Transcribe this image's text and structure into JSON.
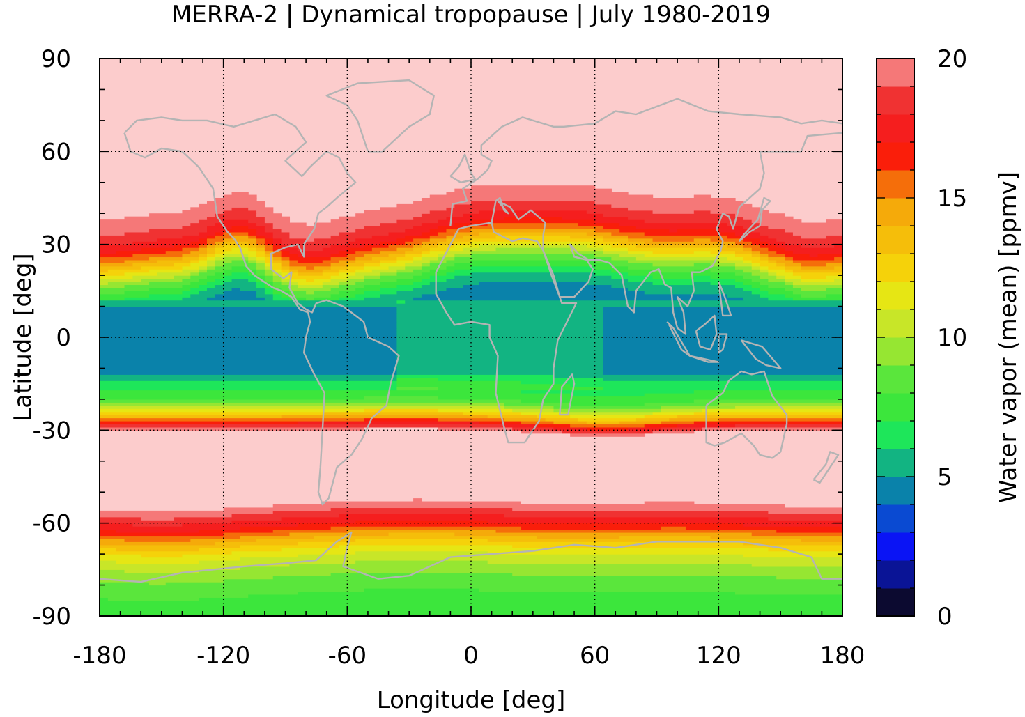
{
  "chart_data": {
    "type": "heatmap",
    "title": "MERRA-2 | Dynamical tropopause | July 1980-2019",
    "xlabel": "Longitude [deg]",
    "ylabel": "Latitude [deg]",
    "xlim": [
      -180,
      180
    ],
    "ylim": [
      -90,
      90
    ],
    "x_ticks": [
      -180,
      -120,
      -60,
      0,
      60,
      120,
      180
    ],
    "y_ticks": [
      -90,
      -60,
      -30,
      0,
      30,
      60,
      90
    ],
    "grid": true,
    "colorbar": {
      "label": "Water vapor (mean) [ppmv]",
      "range": [
        0,
        20
      ],
      "ticks": [
        0,
        5,
        10,
        15,
        20
      ],
      "levels": [
        0,
        1,
        2,
        3,
        4,
        5,
        6,
        7,
        8,
        9,
        10,
        11,
        12,
        13,
        14,
        15,
        16,
        17,
        18,
        19,
        20
      ],
      "colors": [
        "#0c0a30",
        "#0a1496",
        "#0a14f5",
        "#0a4ad2",
        "#0a82aa",
        "#12b482",
        "#1ee65a",
        "#3ce63c",
        "#5ae63c",
        "#96e632",
        "#c8e628",
        "#e6e614",
        "#f5d20a",
        "#f5be0a",
        "#f5aa0a",
        "#f56e0a",
        "#fa1e0a",
        "#f51e1e",
        "#f03232",
        "#f57878",
        "#fccccc"
      ]
    },
    "field_profile_by_latitude": {
      "latitude": [
        -90,
        -85,
        -80,
        -75,
        -70,
        -65,
        -62,
        -60,
        -58,
        -55,
        -40,
        -30,
        -28,
        -26,
        -24,
        -22,
        -20,
        -17,
        -14,
        -10,
        -5,
        0,
        5,
        10,
        12,
        15,
        18,
        22,
        26,
        30,
        35,
        40,
        50,
        90
      ],
      "water_vapor_ppmv": [
        7.5,
        7.8,
        8.5,
        9.8,
        11.5,
        14.5,
        16.8,
        17.6,
        18.6,
        20,
        20,
        20,
        17.5,
        14.5,
        12,
        9.5,
        8,
        7,
        6,
        4.6,
        4.4,
        4.4,
        4.4,
        5.2,
        6,
        7.5,
        9,
        12,
        15,
        17.5,
        19,
        20,
        20,
        20
      ]
    }
  }
}
